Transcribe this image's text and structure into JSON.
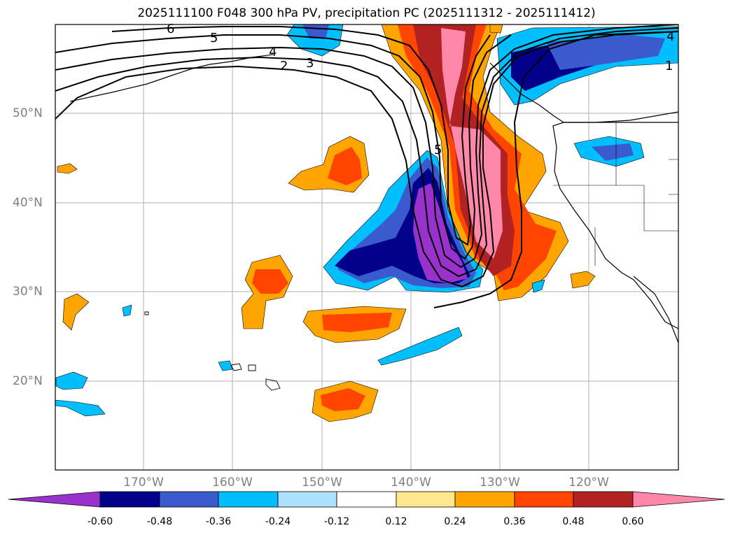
{
  "title": "2025111100 F048 300 hPa PV, precipitation PC (2025111312 - 2025111412)",
  "latitude_labels": [
    "50°N",
    "40°N",
    "30°N",
    "20°N"
  ],
  "longitude_labels": [
    "170°W",
    "160°W",
    "150°W",
    "140°W",
    "130°W",
    "120°W"
  ],
  "pv_contour_labels": [
    "6",
    "5",
    "4",
    "3",
    "2",
    "5",
    "1",
    "4"
  ],
  "colorbar": {
    "colors": [
      "#9932CC",
      "#00008B",
      "#3A5BCD",
      "#00BFFF",
      "#ADE1FB",
      "#FFFFFF",
      "#FFE98C",
      "#FFA500",
      "#FF4500",
      "#B22222",
      "#FF88AA",
      "#FF88AA"
    ],
    "labels": [
      "-0.60",
      "-0.48",
      "-0.36",
      "-0.24",
      "-0.12",
      "0.12",
      "0.24",
      "0.36",
      "0.48",
      "0.60"
    ]
  },
  "map": {
    "grid": true,
    "extent": {
      "lon_west": -180,
      "lon_east": -110,
      "lat_south": 10,
      "lat_north": 60
    }
  }
}
